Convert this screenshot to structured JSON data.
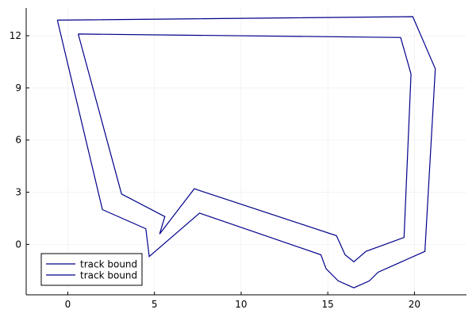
{
  "chart_data": {
    "type": "line",
    "title": "",
    "xlabel": "",
    "ylabel": "",
    "xlim": [
      -2.4,
      23
    ],
    "ylim": [
      -2.9,
      13.6
    ],
    "xticks": [
      0,
      5,
      10,
      15,
      20
    ],
    "yticks": [
      0,
      3,
      6,
      9,
      12
    ],
    "xtick_labels": [
      "0",
      "5",
      "10",
      "15",
      "20"
    ],
    "ytick_labels": [
      "0",
      "3",
      "6",
      "9",
      "12"
    ],
    "grid": true,
    "legend_position": "bottom-left",
    "colors": {
      "series": "#00008b",
      "axis": "#000000"
    },
    "series": [
      {
        "name": "track bound",
        "color": "#00008b",
        "points": [
          [
            0.6,
            12.1
          ],
          [
            19.2,
            11.9
          ],
          [
            19.8,
            9.8
          ],
          [
            19.4,
            0.4
          ],
          [
            17.2,
            -0.4
          ],
          [
            16.5,
            -1.0
          ],
          [
            16.0,
            -0.6
          ],
          [
            15.5,
            0.5
          ],
          [
            7.3,
            3.2
          ],
          [
            5.3,
            0.6
          ],
          [
            5.6,
            1.6
          ],
          [
            3.1,
            2.9
          ],
          [
            0.6,
            12.1
          ]
        ]
      },
      {
        "name": "track bound",
        "color": "#00008b",
        "points": [
          [
            -0.6,
            12.9
          ],
          [
            19.9,
            13.1
          ],
          [
            21.2,
            10.1
          ],
          [
            20.6,
            -0.4
          ],
          [
            17.9,
            -1.6
          ],
          [
            17.4,
            -2.1
          ],
          [
            16.5,
            -2.5
          ],
          [
            15.6,
            -2.1
          ],
          [
            14.9,
            -1.4
          ],
          [
            14.6,
            -0.6
          ],
          [
            7.6,
            1.8
          ],
          [
            4.7,
            -0.7
          ],
          [
            4.5,
            0.9
          ],
          [
            2.0,
            2.0
          ],
          [
            -0.6,
            12.9
          ]
        ]
      }
    ]
  }
}
